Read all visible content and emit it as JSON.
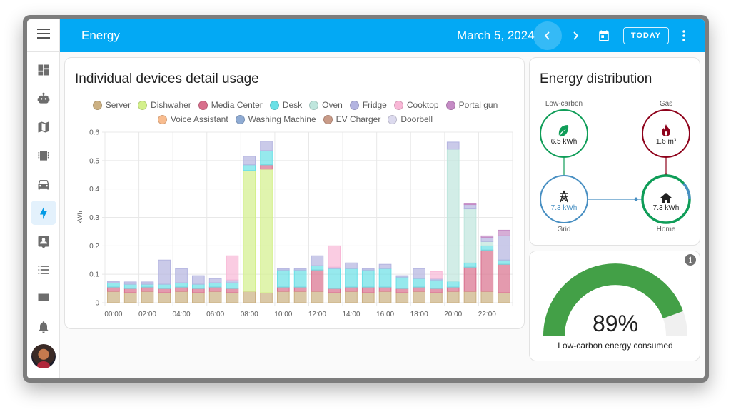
{
  "topbar": {
    "title": "Energy",
    "date": "March 5, 2024",
    "today_label": "TODAY"
  },
  "sidebar": {
    "items": [
      {
        "name": "menu-icon"
      },
      {
        "name": "dashboard-icon"
      },
      {
        "name": "robot-icon"
      },
      {
        "name": "map-icon"
      },
      {
        "name": "chip-icon"
      },
      {
        "name": "car-icon"
      },
      {
        "name": "lightning-icon",
        "active": true
      },
      {
        "name": "contact-card-icon"
      },
      {
        "name": "list-icon"
      },
      {
        "name": "chart-icon"
      },
      {
        "name": "bell-icon"
      }
    ]
  },
  "detail": {
    "title": "Individual devices detail usage",
    "legend": [
      {
        "label": "Server",
        "color": "#cbb082"
      },
      {
        "label": "Dishwaher",
        "color": "#d3f08b"
      },
      {
        "label": "Media Center",
        "color": "#d86f8c"
      },
      {
        "label": "Desk",
        "color": "#6ae0e6"
      },
      {
        "label": "Oven",
        "color": "#bfe6dd"
      },
      {
        "label": "Fridge",
        "color": "#b3b4e0"
      },
      {
        "label": "Cooktop",
        "color": "#f8b7d6"
      },
      {
        "label": "Portal gun",
        "color": "#c58bc5"
      },
      {
        "label": "Voice Assistant",
        "color": "#f8bc8f"
      },
      {
        "label": "Washing Machine",
        "color": "#8fabd3"
      },
      {
        "label": "EV Charger",
        "color": "#c99b88"
      },
      {
        "label": "Doorbell",
        "color": "#dcdaee"
      }
    ]
  },
  "chart_data": {
    "type": "bar",
    "stacked": true,
    "ylabel": "kWh",
    "ylim": [
      0,
      0.6
    ],
    "yticks": [
      "0",
      "0.1",
      "0.2",
      "0.3",
      "0.4",
      "0.5",
      "0.6"
    ],
    "xtick_labels": [
      "00:00",
      "02:00",
      "04:00",
      "06:00",
      "08:00",
      "10:00",
      "12:00",
      "14:00",
      "16:00",
      "18:00",
      "20:00",
      "22:00"
    ],
    "categories": [
      "00:00",
      "01:00",
      "02:00",
      "03:00",
      "04:00",
      "05:00",
      "06:00",
      "07:00",
      "08:00",
      "09:00",
      "10:00",
      "11:00",
      "12:00",
      "13:00",
      "14:00",
      "15:00",
      "16:00",
      "17:00",
      "18:00",
      "19:00",
      "20:00",
      "21:00",
      "22:00",
      "23:00"
    ],
    "series": [
      {
        "name": "Server",
        "color": "#cbb082",
        "values": [
          0.04,
          0.035,
          0.04,
          0.035,
          0.04,
          0.035,
          0.04,
          0.035,
          0.04,
          0.035,
          0.04,
          0.04,
          0.04,
          0.035,
          0.04,
          0.035,
          0.04,
          0.035,
          0.04,
          0.035,
          0.04,
          0.04,
          0.04,
          0.035
        ]
      },
      {
        "name": "Dishwaher",
        "color": "#d3f08b",
        "values": [
          0,
          0,
          0,
          0,
          0,
          0,
          0,
          0,
          0.425,
          0.435,
          0,
          0,
          0,
          0,
          0,
          0,
          0,
          0,
          0,
          0,
          0,
          0,
          0,
          0
        ]
      },
      {
        "name": "Media Center",
        "color": "#d86f8c",
        "values": [
          0.015,
          0.015,
          0.015,
          0.015,
          0.015,
          0.015,
          0.015,
          0.015,
          0,
          0.015,
          0.015,
          0.015,
          0.075,
          0.015,
          0.015,
          0.02,
          0.015,
          0.015,
          0.015,
          0.015,
          0.015,
          0.085,
          0.145,
          0.1
        ]
      },
      {
        "name": "Desk",
        "color": "#6ae0e6",
        "values": [
          0.015,
          0.015,
          0.01,
          0.015,
          0.015,
          0.015,
          0.015,
          0.02,
          0.02,
          0.05,
          0.06,
          0.06,
          0.015,
          0.07,
          0.065,
          0.06,
          0.065,
          0.04,
          0.03,
          0.03,
          0.02,
          0.015,
          0.015,
          0.015
        ]
      },
      {
        "name": "Oven",
        "color": "#bfe6dd",
        "values": [
          0,
          0,
          0,
          0,
          0,
          0,
          0,
          0,
          0,
          0,
          0,
          0,
          0,
          0,
          0,
          0,
          0,
          0,
          0,
          0,
          0.465,
          0.19,
          0.015,
          0
        ]
      },
      {
        "name": "Fridge",
        "color": "#b3b4e0",
        "values": [
          0.005,
          0.008,
          0.008,
          0.085,
          0.05,
          0.03,
          0.015,
          0.01,
          0.03,
          0.033,
          0.005,
          0.005,
          0.035,
          0.005,
          0.02,
          0.005,
          0.015,
          0.005,
          0.035,
          0.005,
          0.025,
          0.015,
          0.015,
          0.085
        ]
      },
      {
        "name": "Cooktop",
        "color": "#f8b7d6",
        "values": [
          0,
          0,
          0,
          0,
          0,
          0,
          0,
          0.085,
          0,
          0,
          0,
          0,
          0,
          0.075,
          0,
          0,
          0,
          0,
          0,
          0.025,
          0,
          0,
          0,
          0
        ]
      },
      {
        "name": "Portal gun",
        "color": "#c58bc5",
        "values": [
          0,
          0,
          0,
          0,
          0,
          0,
          0,
          0,
          0,
          0,
          0,
          0,
          0,
          0,
          0,
          0,
          0,
          0,
          0,
          0,
          0,
          0.005,
          0.005,
          0.02
        ]
      }
    ]
  },
  "distribution": {
    "title": "Energy distribution",
    "low_carbon": {
      "label": "Low-carbon",
      "value": "6.5 kWh",
      "icon": "leaf-icon",
      "color": "#0f9d58"
    },
    "gas": {
      "label": "Gas",
      "value": "1.6 m³",
      "icon": "fire-icon",
      "color": "#8e021b"
    },
    "grid": {
      "label": "Grid",
      "value": "7.3 kWh",
      "icon": "transmission-tower-icon",
      "color": "#488fc2"
    },
    "home": {
      "label": "Home",
      "value": "7.3 kWh",
      "icon": "home-icon",
      "color": "#0f9d58"
    }
  },
  "gauge": {
    "value_pct": 89,
    "value_text": "89%",
    "label": "Low-carbon energy consumed",
    "color": "#43a047"
  }
}
